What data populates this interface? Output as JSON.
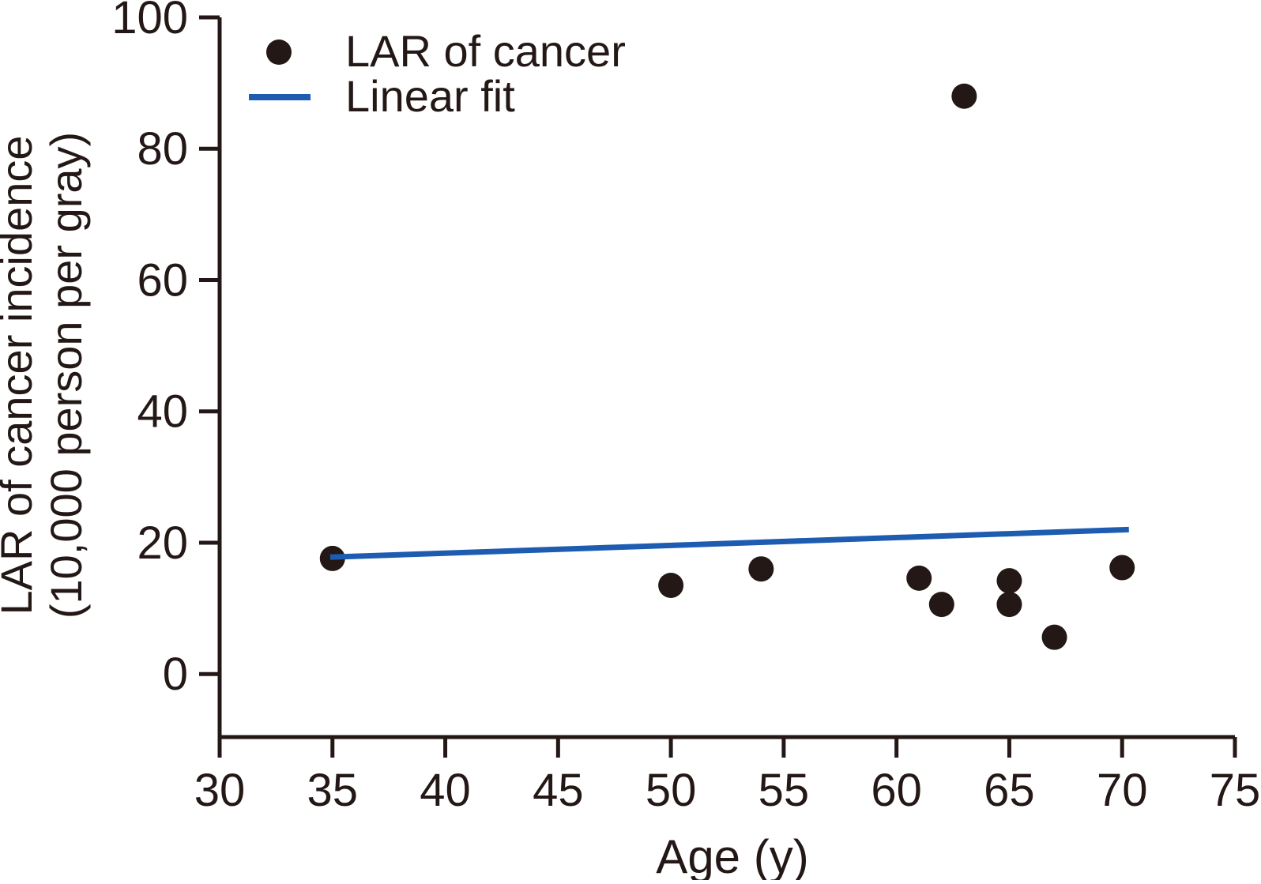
{
  "chart_data": {
    "type": "scatter",
    "title": "",
    "xlabel": "Age (y)",
    "ylabel_line1": "LAR of cancer incidence",
    "ylabel_line2": "(10,000 person per gray)",
    "xlim": [
      30,
      75
    ],
    "ylim": [
      -9.6,
      100
    ],
    "x_ticks": [
      30,
      35,
      40,
      45,
      50,
      55,
      60,
      65,
      70,
      75
    ],
    "y_ticks": [
      0,
      20,
      40,
      60,
      80,
      100
    ],
    "grid": false,
    "legend_position": "top-left inside",
    "series": [
      {
        "name": "LAR of cancer",
        "kind": "scatter",
        "marker": "filled-circle",
        "color": "#231815",
        "points": [
          [
            35,
            17.6
          ],
          [
            50,
            13.5
          ],
          [
            54,
            16.0
          ],
          [
            61,
            14.6
          ],
          [
            62,
            10.6
          ],
          [
            63,
            88.0
          ],
          [
            65,
            14.2
          ],
          [
            65,
            10.6
          ],
          [
            67,
            5.6
          ],
          [
            70,
            16.2
          ]
        ]
      },
      {
        "name": "Linear fit",
        "kind": "line",
        "color": "#1d5cb0",
        "points": [
          [
            34.9,
            17.8
          ],
          [
            70.3,
            22.0
          ]
        ]
      }
    ]
  },
  "colors": {
    "axis": "#231815",
    "text": "#231815",
    "marker": "#231815",
    "fit_line": "#1d5cb0",
    "background": "#ffffff"
  }
}
